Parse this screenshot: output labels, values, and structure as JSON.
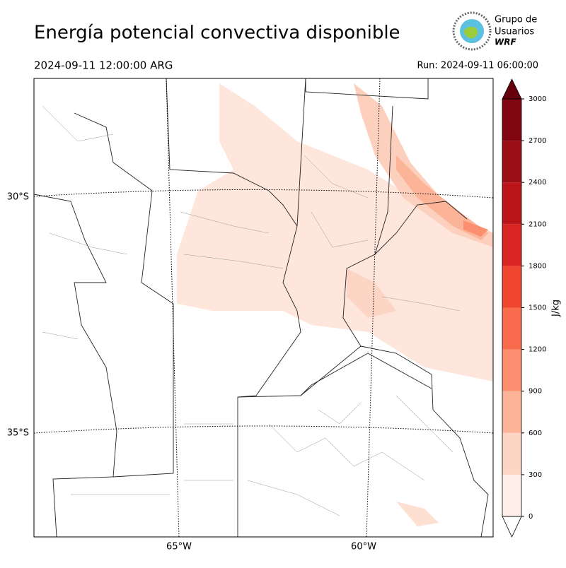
{
  "title": "Energía potencial convectiva disponible",
  "valid_time": "2024-09-11 12:00:00 ARG",
  "run": "Run: 2024-09-11 06:00:00",
  "logo": {
    "line1": "Grupo de",
    "line2": "Usuarios",
    "line3": "WRF"
  },
  "map": {
    "lat_labels": [
      "30°S",
      "35°S"
    ],
    "lon_labels": [
      "65°W",
      "60°W"
    ]
  },
  "colorbar": {
    "label": "J/kg",
    "ticks": [
      0,
      300,
      600,
      900,
      1200,
      1500,
      1800,
      2100,
      2400,
      2700,
      3000
    ],
    "colors": [
      "#fff0e9",
      "#fdd5c4",
      "#fcb499",
      "#fc8f6f",
      "#f96b4d",
      "#f0462f",
      "#d92522",
      "#bb151a",
      "#9b0d14",
      "#7f0510"
    ],
    "extend_color": "#67000d"
  }
}
